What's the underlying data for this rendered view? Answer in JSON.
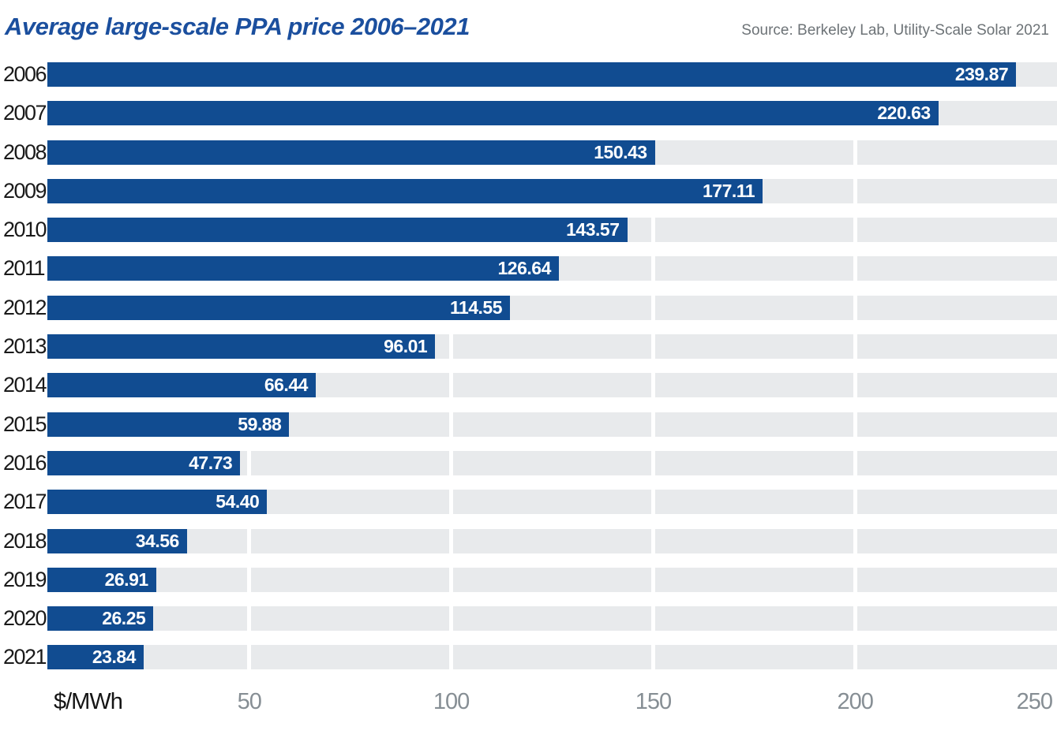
{
  "title": "Average large-scale PPA price 2006–2021",
  "source": "Source: Berkeley Lab, Utility-Scale Solar 2021",
  "axis": {
    "unit_label": "$/MWh",
    "ticks": [
      50,
      100,
      150,
      200,
      250
    ],
    "max": 250
  },
  "colors": {
    "bar": "#114C91",
    "track": "#E8EAEC",
    "title": "#1B4F9E",
    "tick_label": "#868E94",
    "source": "#6D7377",
    "year_label": "#1A1A1A",
    "gridline": "#FFFFFF",
    "value_label": "#FFFFFF",
    "background": "#FFFFFF"
  },
  "chart_data": {
    "type": "bar",
    "orientation": "horizontal",
    "title": "Average large-scale PPA price 2006–2021",
    "xlabel": "$/MWh",
    "ylabel": "",
    "xlim": [
      0,
      250
    ],
    "grid": true,
    "value_label_position": "inside-end",
    "categories": [
      "2006",
      "2007",
      "2008",
      "2009",
      "2010",
      "2011",
      "2012",
      "2013",
      "2014",
      "2015",
      "2016",
      "2017",
      "2018",
      "2019",
      "2020",
      "2021"
    ],
    "values": [
      239.87,
      220.63,
      150.43,
      177.11,
      143.57,
      126.64,
      114.55,
      96.01,
      66.44,
      59.88,
      47.73,
      54.4,
      34.56,
      26.91,
      26.25,
      23.84
    ],
    "value_labels": [
      "239.87",
      "220.63",
      "150.43",
      "177.11",
      "143.57",
      "126.64",
      "114.55",
      "96.01",
      "66.44",
      "59.88",
      "47.73",
      "54.40",
      "34.56",
      "26.91",
      "26.25",
      "23.84"
    ]
  }
}
